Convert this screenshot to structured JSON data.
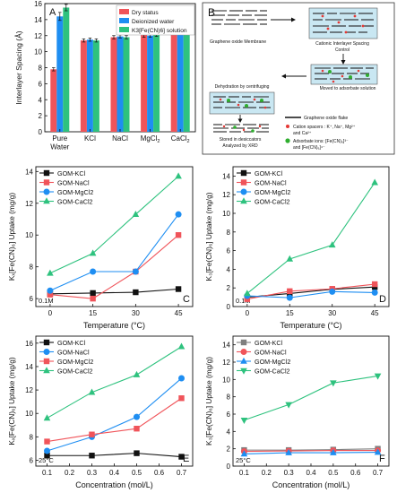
{
  "colors": {
    "red": "#f0545a",
    "blue": "#1e8ef2",
    "green": "#2ec27e",
    "black": "#111111",
    "gray": "#7f7f7f",
    "diagram_bg": "#c9e7f2"
  },
  "chart_data": [
    {
      "panel": "A",
      "type": "bar",
      "categories": [
        "Pure Water",
        "KCl",
        "NaCl",
        "MgCl2",
        "CaCl2"
      ],
      "series": [
        {
          "name": "Dry status",
          "values": [
            7.8,
            11.4,
            11.8,
            12.1,
            13.7
          ],
          "errors": [
            0.2,
            0.2,
            0.2,
            0.3,
            0.4
          ]
        },
        {
          "name": "Deionized water",
          "values": [
            14.4,
            11.5,
            11.9,
            12.0,
            13.8
          ],
          "errors": [
            0.5,
            0.2,
            0.2,
            0.2,
            0.3
          ]
        },
        {
          "name": "K3[Fe(CN)6] solution",
          "values": [
            15.5,
            11.4,
            11.8,
            12.1,
            13.7
          ],
          "errors": [
            0.4,
            0.2,
            0.2,
            0.2,
            0.3
          ]
        }
      ],
      "xtick_labels": [
        "Pure\nWater",
        "KCl",
        "NaCl",
        "MgCl",
        "CaCl"
      ],
      "xtick_subscripts": [
        "",
        "",
        "",
        "2",
        "2"
      ],
      "ylabel": "Interlayer Spacing (Å)",
      "ylim": [
        0,
        16
      ],
      "yticks": [
        0,
        2,
        4,
        6,
        8,
        10,
        12,
        14,
        16
      ],
      "legend": "top-right"
    },
    {
      "panel": "C",
      "type": "line",
      "x": [
        0,
        15,
        30,
        45
      ],
      "series": [
        {
          "name": "GOM-KCl",
          "values": [
            6.3,
            6.35,
            6.4,
            6.6
          ],
          "marker": "square"
        },
        {
          "name": "GOM-NaCl",
          "values": [
            6.25,
            6.0,
            7.7,
            10.0
          ],
          "marker": "square"
        },
        {
          "name": "GOM-MgCl2",
          "values": [
            6.5,
            7.7,
            7.7,
            11.3
          ],
          "marker": "circle"
        },
        {
          "name": "GOM-CaCl2",
          "values": [
            7.6,
            8.85,
            11.3,
            13.7
          ],
          "marker": "triangle-up"
        }
      ],
      "ylabel": "Kₓ[Fe(CN)₆] Uptake (mg/g)",
      "xlabel": "Temperature (°C)",
      "xlim": [
        -5,
        50
      ],
      "xticks": [
        0,
        15,
        30,
        45
      ],
      "ylim": [
        5.5,
        14.3
      ],
      "yticks": [
        6,
        8,
        10,
        12,
        14
      ],
      "annotation": "0.1M",
      "legend": "top-left"
    },
    {
      "panel": "D",
      "type": "line",
      "x": [
        0,
        15,
        30,
        45
      ],
      "series": [
        {
          "name": "GOM-KCl",
          "values": [
            1.0,
            1.4,
            1.85,
            2.1
          ],
          "marker": "square"
        },
        {
          "name": "GOM-NaCl",
          "values": [
            0.8,
            1.65,
            1.9,
            2.4
          ],
          "marker": "square"
        },
        {
          "name": "GOM-MgCl2",
          "values": [
            1.15,
            0.95,
            1.6,
            1.5
          ],
          "marker": "circle"
        },
        {
          "name": "GOM-CaCl2",
          "values": [
            1.4,
            5.1,
            6.6,
            13.3
          ],
          "marker": "triangle-up"
        }
      ],
      "ylabel": "K₃[Fe(CN)₆] Uptake (mg/g)",
      "xlabel": "Temperature (°C)",
      "xlim": [
        -5,
        50
      ],
      "xticks": [
        0,
        15,
        30,
        45
      ],
      "ylim": [
        0,
        15
      ],
      "yticks": [
        0,
        2,
        4,
        6,
        8,
        10,
        12,
        14
      ],
      "annotation": "0.1M",
      "legend": "top-left"
    },
    {
      "panel": "E",
      "type": "line",
      "x": [
        0.1,
        0.3,
        0.5,
        0.7
      ],
      "series": [
        {
          "name": "GOM-KCl",
          "values": [
            6.4,
            6.4,
            6.6,
            6.3
          ],
          "marker": "square"
        },
        {
          "name": "GOM-NaCl",
          "values": [
            6.8,
            8.0,
            9.7,
            13.0
          ],
          "marker": "circle"
        },
        {
          "name": "GOM-MgCl2",
          "values": [
            7.6,
            8.2,
            8.7,
            11.3
          ],
          "marker": "square"
        },
        {
          "name": "GOM-CaCl2",
          "values": [
            9.6,
            11.8,
            13.3,
            15.7
          ],
          "marker": "triangle-up"
        }
      ],
      "ylabel": "Kₓ[Fe(CN)₆] Uptake (mg/g)",
      "xlabel": "Concentration (mol/L)",
      "xlim": [
        0.05,
        0.75
      ],
      "xticks": [
        0.1,
        0.2,
        0.3,
        0.4,
        0.5,
        0.6,
        0.7
      ],
      "ylim": [
        5.5,
        16.6
      ],
      "yticks": [
        6,
        8,
        10,
        12,
        14,
        16
      ],
      "annotation": "25°C",
      "legend": "top-left"
    },
    {
      "panel": "F",
      "type": "line",
      "x": [
        0.1,
        0.3,
        0.5,
        0.7
      ],
      "series": [
        {
          "name": "GOM-KCl",
          "values": [
            1.85,
            1.85,
            1.9,
            2.0
          ],
          "marker": "square"
        },
        {
          "name": "GOM-NaCl",
          "values": [
            1.7,
            1.75,
            1.8,
            1.8
          ],
          "marker": "circle"
        },
        {
          "name": "GOM-MgCl2",
          "values": [
            1.4,
            1.55,
            1.55,
            1.6
          ],
          "marker": "triangle-up"
        },
        {
          "name": "GOM-CaCl2",
          "values": [
            5.3,
            7.1,
            9.6,
            10.4
          ],
          "marker": "triangle-down"
        }
      ],
      "ylabel": "K₃[Fe(CN)₆] Uptake (mg/g)",
      "xlabel": "Concentration (mol/L)",
      "xlim": [
        0.05,
        0.75
      ],
      "xticks": [
        0.1,
        0.2,
        0.3,
        0.4,
        0.5,
        0.6,
        0.7
      ],
      "ylim": [
        0,
        15
      ],
      "yticks": [
        0,
        2,
        4,
        6,
        8,
        10,
        12,
        14
      ],
      "annotation": "25°C",
      "legend": "top-left"
    }
  ],
  "diagram": {
    "panel": "B",
    "labels": {
      "membrane": "Graphene oxide Membrane",
      "cationic_line1": "Cationic Interlayer Spacing",
      "cationic_line2": "Control",
      "moved_line1": "Moved to adsorbate solution",
      "dehydration": "Dehydration by centrifuging",
      "stored_line1": "Stored in desiccators",
      "stored_line2": "Analyzed by XRD",
      "legend_flake": "Graphene oxide flake",
      "legend_cation_line1": "Cation spacers : K⁺, Na⁺, Mg²⁺",
      "legend_cation_line2": "and Ca²⁺",
      "legend_anion_line1": "Adsorbate ions: [Fe(CN)₆]³⁻",
      "legend_anion_line2": "and [Fe(CN)₆]⁴⁻"
    }
  }
}
